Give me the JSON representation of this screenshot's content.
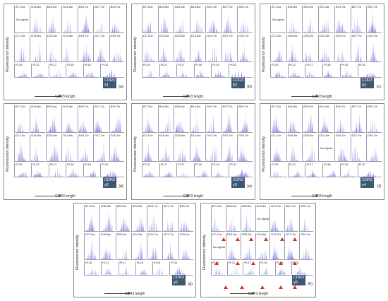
{
  "figure": {
    "y_axis_label": "Fluorescence intensity",
    "x_axis_label": "CDR3 length",
    "no_signal_label": "No signal",
    "row1_labels": [
      "B7-11w",
      "B16-8w",
      "B25-6w",
      "B14-8w",
      "B19-7w",
      "B27-7w",
      "B29-7w"
    ],
    "row2_labels": [
      "D7-11w",
      "D16-8w",
      "D25-6w",
      "D14-8w",
      "D19-7w",
      "D27-7w",
      "D29-7w"
    ],
    "row3_labels": [
      "PL15",
      "PL21",
      "PL17",
      "PL18",
      "PL16",
      "PL31"
    ],
    "peak_color": "#5b5bd6",
    "marker_color": "#d62a2a",
    "badge_color": "#3e5873"
  },
  "panels": [
    {
      "letter": "(a)",
      "badge_line1": "CDR3",
      "badge_line2": "δ1",
      "no_signal_cells": [
        "0-0"
      ]
    },
    {
      "letter": "(b)",
      "badge_line1": "CDR3",
      "badge_line2": "δ2",
      "no_signal_cells": []
    },
    {
      "letter": "(c)",
      "badge_line1": "CDR3",
      "badge_line2": "δ3",
      "no_signal_cells": [
        "0-0"
      ]
    },
    {
      "letter": "(d)",
      "badge_line1": "CDR3",
      "badge_line2": "γ2",
      "no_signal_cells": []
    },
    {
      "letter": "(e)",
      "badge_line1": "CDR3",
      "badge_line2": "γ3",
      "no_signal_cells": []
    },
    {
      "letter": "(f)",
      "badge_line1": "CDR3",
      "badge_line2": "γ4",
      "no_signal_cells": [
        "1-3"
      ]
    },
    {
      "letter": "(g)",
      "badge_line1": "CDR3",
      "badge_line2": "γ5",
      "no_signal_cells": []
    },
    {
      "letter": "(h)",
      "badge_line1": "CDR3",
      "badge_line2": "γ9",
      "no_signal_cells": [
        "0-3",
        "1-0"
      ]
    }
  ]
}
